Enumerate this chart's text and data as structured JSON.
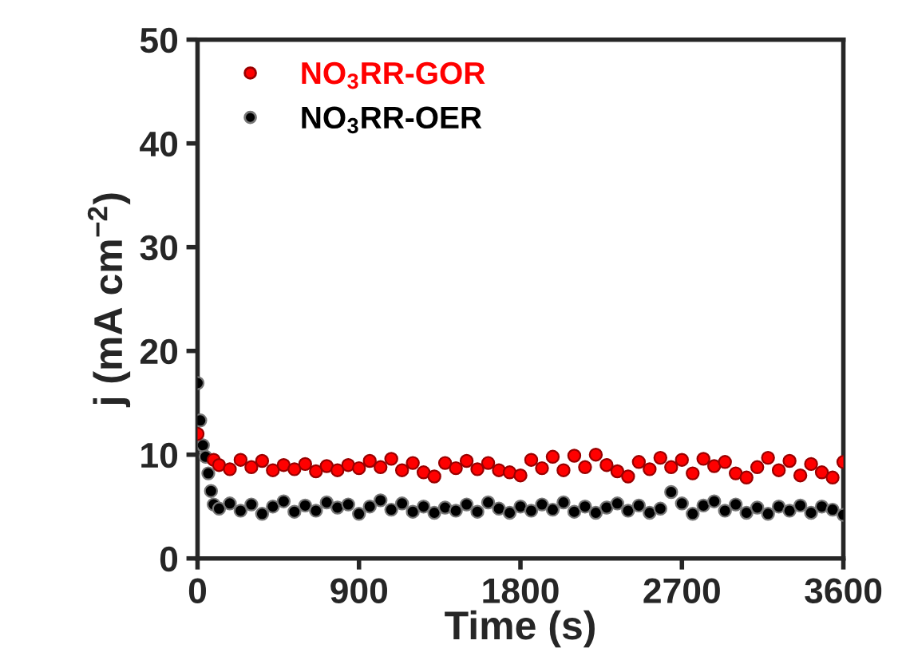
{
  "chart_data": {
    "type": "scatter",
    "xlabel": "Time (s)",
    "ylabel": "j (mA cm$^{−2}$)",
    "xlim": [
      0,
      3600
    ],
    "ylim": [
      0,
      50
    ],
    "xticks": [
      0,
      900,
      1800,
      2700,
      3600
    ],
    "yticks": [
      0,
      10,
      20,
      30,
      40,
      50
    ],
    "grid": false,
    "legend": "top left",
    "marker": "circle",
    "x": [
      0,
      15,
      30,
      45,
      60,
      75,
      90,
      120,
      180,
      240,
      300,
      360,
      420,
      480,
      540,
      600,
      660,
      720,
      780,
      840,
      900,
      960,
      1020,
      1080,
      1140,
      1200,
      1260,
      1320,
      1380,
      1440,
      1500,
      1560,
      1620,
      1680,
      1740,
      1800,
      1860,
      1920,
      1980,
      2040,
      2100,
      2160,
      2220,
      2280,
      2340,
      2400,
      2460,
      2520,
      2580,
      2640,
      2700,
      2760,
      2820,
      2880,
      2940,
      3000,
      3060,
      3120,
      3180,
      3240,
      3300,
      3360,
      3420,
      3480,
      3540,
      3600
    ],
    "series": [
      {
        "name": "NO$_{3}$RR-GOR",
        "color": "#ff0000",
        "x": [
          0,
          90,
          120,
          180,
          240,
          300,
          360,
          420,
          480,
          540,
          600,
          660,
          720,
          780,
          840,
          900,
          960,
          1020,
          1080,
          1140,
          1200,
          1260,
          1320,
          1380,
          1440,
          1500,
          1560,
          1620,
          1680,
          1740,
          1800,
          1860,
          1920,
          1980,
          2040,
          2100,
          2160,
          2220,
          2280,
          2340,
          2400,
          2460,
          2520,
          2580,
          2640,
          2700,
          2760,
          2820,
          2880,
          2940,
          3000,
          3060,
          3120,
          3180,
          3240,
          3300,
          3360,
          3420,
          3480,
          3540,
          3600
        ],
        "values": [
          12.0,
          9.5,
          9.0,
          8.6,
          9.5,
          8.8,
          9.4,
          8.5,
          9.0,
          8.6,
          9.1,
          8.4,
          8.9,
          8.5,
          9.0,
          8.7,
          9.4,
          8.8,
          9.6,
          8.5,
          9.2,
          8.3,
          7.9,
          9.2,
          8.7,
          9.4,
          8.6,
          9.2,
          8.5,
          8.3,
          8.0,
          9.5,
          8.7,
          9.8,
          8.5,
          9.9,
          8.8,
          10.0,
          9.0,
          8.4,
          7.9,
          9.3,
          8.6,
          9.7,
          8.8,
          9.5,
          8.2,
          9.6,
          8.9,
          9.3,
          8.2,
          7.8,
          8.8,
          9.7,
          8.5,
          9.4,
          8.0,
          9.1,
          8.3,
          7.8,
          9.3
        ]
      },
      {
        "name": "NO$_{3}$RR-OER",
        "color": "#000000",
        "values": [
          16.9,
          13.3,
          10.9,
          9.8,
          8.2,
          6.5,
          5.2,
          4.8,
          5.3,
          4.6,
          5.2,
          4.3,
          5.0,
          5.5,
          4.5,
          5.1,
          4.6,
          5.4,
          4.9,
          5.2,
          4.3,
          5.0,
          5.6,
          4.7,
          5.3,
          4.5,
          5.0,
          4.4,
          4.9,
          4.6,
          5.2,
          4.5,
          5.4,
          4.8,
          4.4,
          5.0,
          4.6,
          5.2,
          4.7,
          5.4,
          4.5,
          5.0,
          4.4,
          4.9,
          5.3,
          4.6,
          5.1,
          4.4,
          4.8,
          6.4,
          5.3,
          4.3,
          5.1,
          5.5,
          4.6,
          5.2,
          4.4,
          4.9,
          4.3,
          5.0,
          4.6,
          5.1,
          4.4,
          5.0,
          4.7,
          4.2
        ]
      }
    ]
  }
}
